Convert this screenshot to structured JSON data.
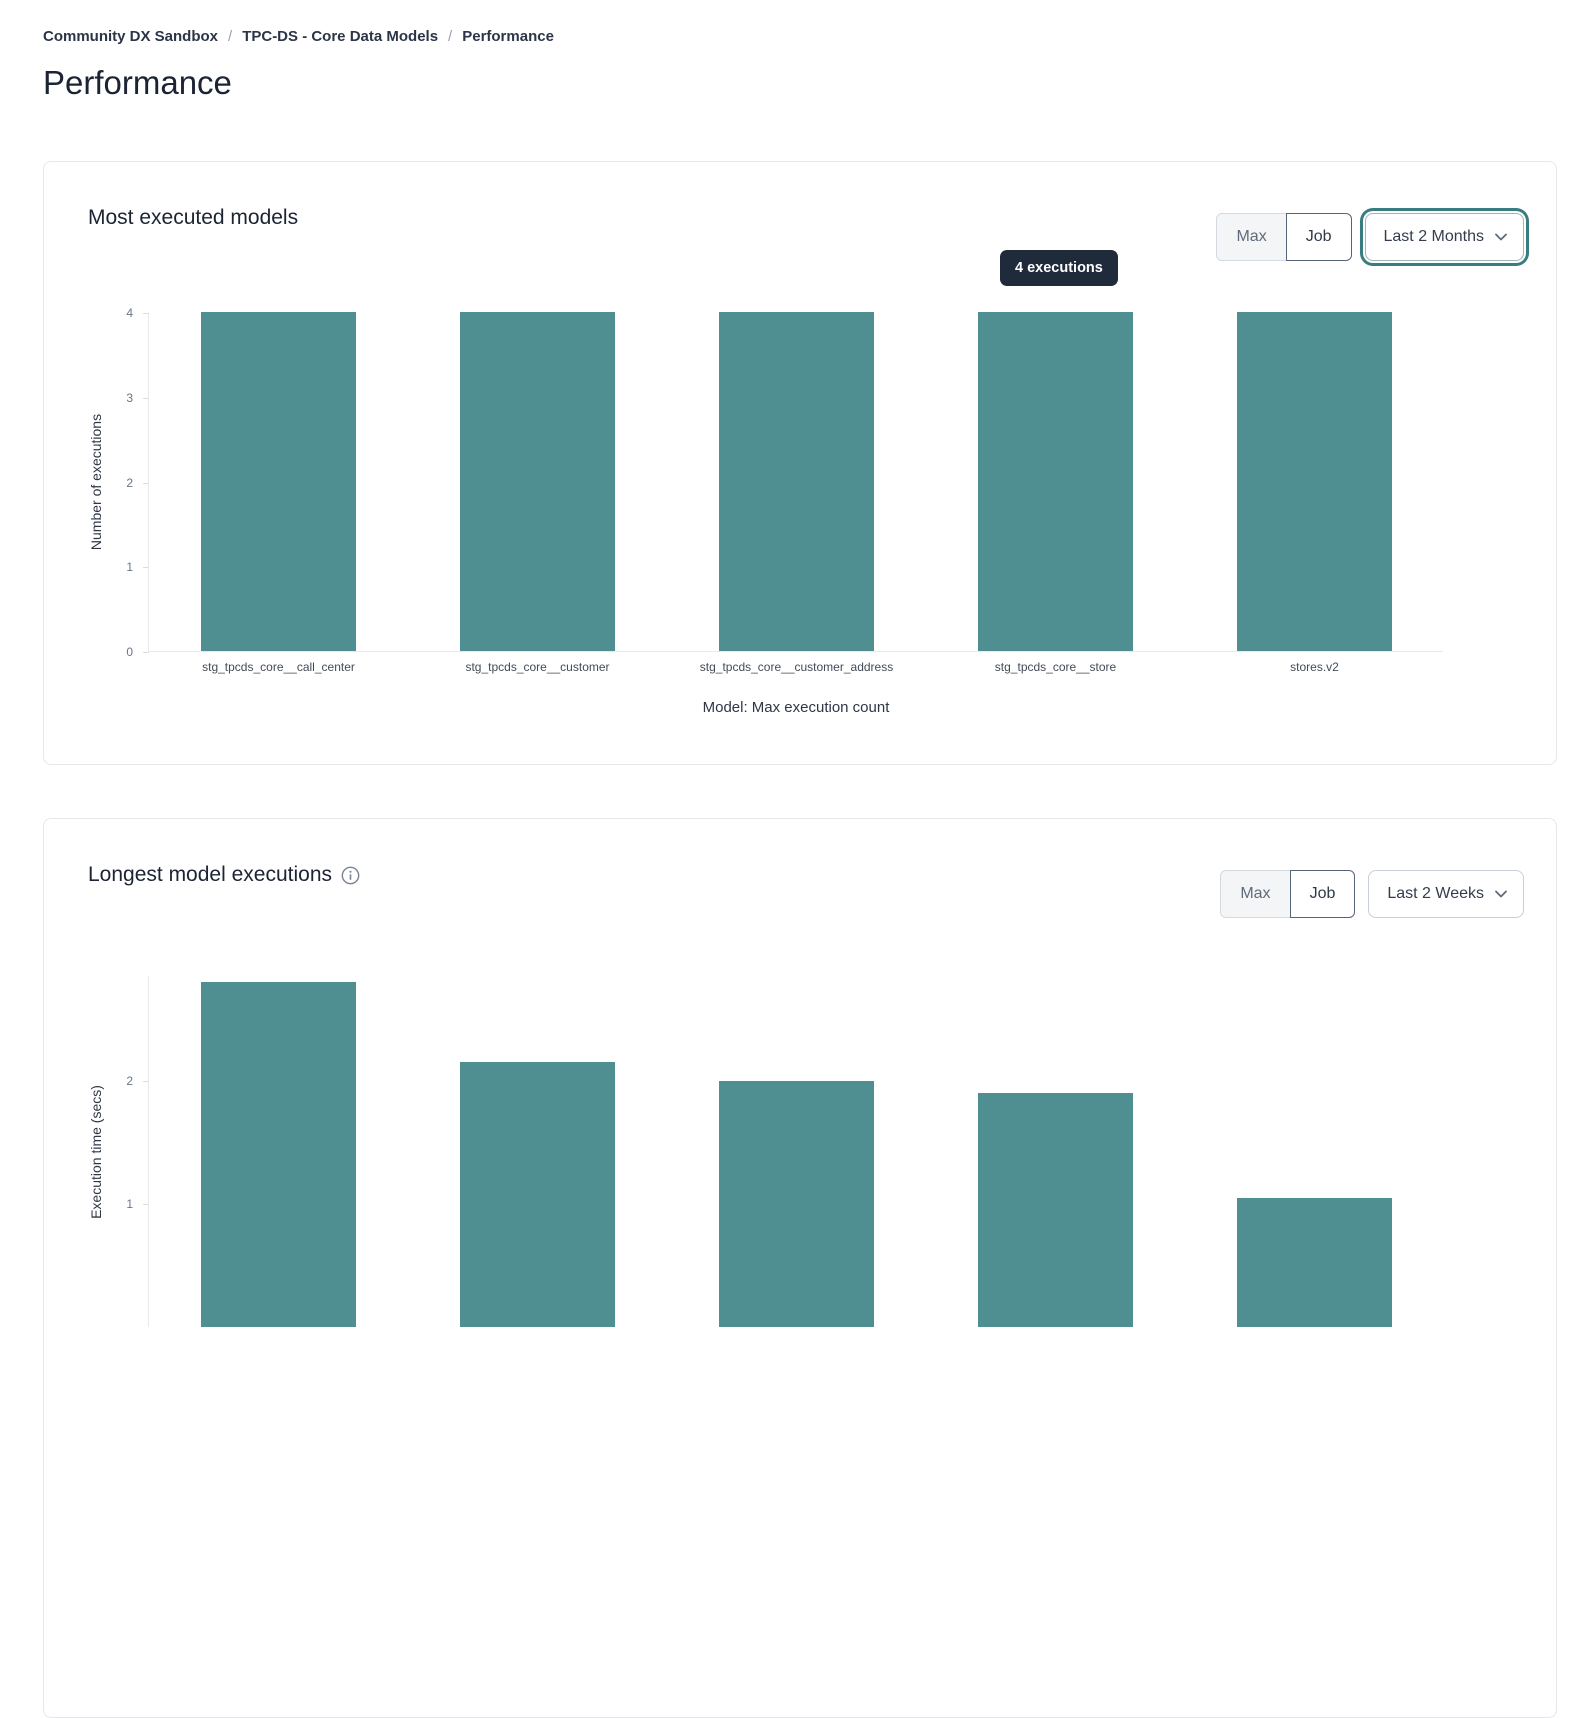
{
  "page": {
    "breadcrumb": {
      "items": [
        "Community DX Sandbox",
        "TPC-DS - Core Data Models",
        "Performance"
      ],
      "separator": "/"
    },
    "title": "Performance"
  },
  "icons": {
    "info": "i-in-circle",
    "chevron_down": "v"
  },
  "colors": {
    "bar_teal": "#4f8e91",
    "tooltip_bg": "#1f2a3b",
    "focus_ring_teal": "#3a7d80",
    "card_border": "#e4e7ec"
  },
  "cards": [
    {
      "title": "Most executed models",
      "toggle": {
        "options": [
          "Max",
          "Job"
        ],
        "selected": "Job"
      },
      "dropdown": {
        "value": "Last 2 Months",
        "state": "focused"
      },
      "tooltip": "4 executions"
    },
    {
      "title": "Longest model executions",
      "has_info_icon": true,
      "toggle": {
        "options": [
          "Max",
          "Job"
        ],
        "selected": "Job"
      },
      "dropdown": {
        "value": "Last 2 Weeks",
        "state": "default"
      }
    }
  ],
  "chart_data": [
    {
      "type": "bar",
      "title": "Most executed models",
      "categories": [
        "stg_tpcds_core__call_center",
        "stg_tpcds_core__customer",
        "stg_tpcds_core__customer_address",
        "stg_tpcds_core__store",
        "stores.v2"
      ],
      "values": [
        4,
        4,
        4,
        4,
        4
      ],
      "xlabel": "Model: Max execution count",
      "ylabel": "Number of executions",
      "ylim": [
        0,
        4
      ],
      "yticks": [
        0,
        1,
        2,
        3,
        4
      ],
      "grid": false,
      "bar_color": "#4f8e91",
      "hover_tooltip": {
        "bar_index": 3,
        "text": "4 executions"
      }
    },
    {
      "type": "bar",
      "title": "Longest model executions",
      "values": [
        2.8,
        2.15,
        2.0,
        1.9,
        1.05
      ],
      "ylabel": "Execution time (secs)",
      "ylim": [
        0,
        2.85
      ],
      "yticks": [
        1,
        2
      ],
      "grid": false,
      "bar_color": "#4f8e91",
      "clipped_at_bottom": true
    }
  ]
}
